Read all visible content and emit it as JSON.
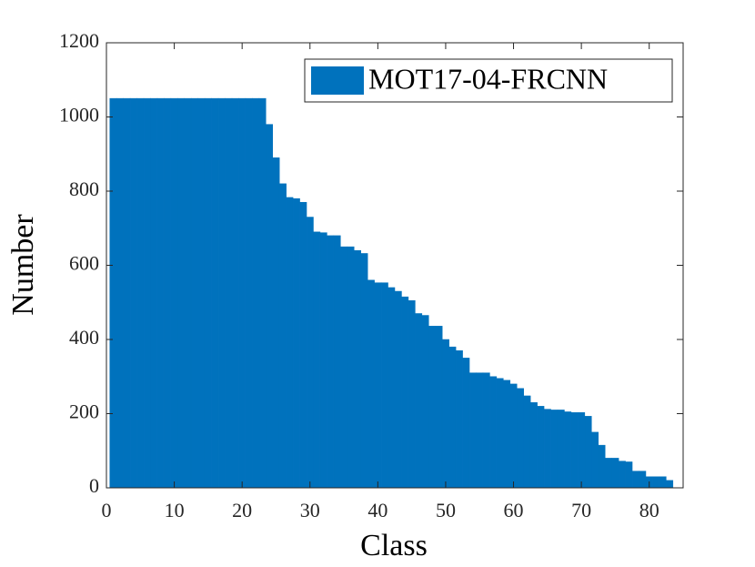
{
  "chart_data": {
    "type": "bar",
    "xlabel": "Class",
    "ylabel": "Number",
    "x": [
      1,
      2,
      3,
      4,
      5,
      6,
      7,
      8,
      9,
      10,
      11,
      12,
      13,
      14,
      15,
      16,
      17,
      18,
      19,
      20,
      21,
      22,
      23,
      24,
      25,
      26,
      27,
      28,
      29,
      30,
      31,
      32,
      33,
      34,
      35,
      36,
      37,
      38,
      39,
      40,
      41,
      42,
      43,
      44,
      45,
      46,
      47,
      48,
      49,
      50,
      51,
      52,
      53,
      54,
      55,
      56,
      57,
      58,
      59,
      60,
      61,
      62,
      63,
      64,
      65,
      66,
      67,
      68,
      69,
      70,
      71,
      72,
      73,
      74,
      75,
      76,
      77,
      78,
      79,
      80,
      81,
      82,
      83
    ],
    "series": [
      {
        "name": "MOT17-04-FRCNN",
        "color": "#0072bd",
        "values": [
          1050,
          1050,
          1050,
          1050,
          1050,
          1050,
          1050,
          1050,
          1050,
          1050,
          1050,
          1050,
          1050,
          1050,
          1050,
          1050,
          1050,
          1050,
          1050,
          1050,
          1050,
          1050,
          1050,
          980,
          890,
          820,
          783,
          780,
          770,
          730,
          690,
          688,
          680,
          680,
          650,
          650,
          640,
          632,
          560,
          553,
          553,
          540,
          530,
          515,
          505,
          470,
          465,
          436,
          436,
          400,
          380,
          370,
          350,
          310,
          310,
          310,
          300,
          295,
          290,
          280,
          268,
          248,
          230,
          220,
          212,
          210,
          210,
          205,
          203,
          203,
          193,
          150,
          115,
          80,
          80,
          72,
          70,
          45,
          45,
          30,
          30,
          30,
          20
        ]
      }
    ],
    "xlim": [
      0,
      85
    ],
    "ylim": [
      0,
      1200
    ],
    "xticks": [
      0,
      10,
      20,
      30,
      40,
      50,
      60,
      70,
      80
    ],
    "yticks": [
      0,
      200,
      400,
      600,
      800,
      1000,
      1200
    ],
    "legend": "upper right"
  }
}
